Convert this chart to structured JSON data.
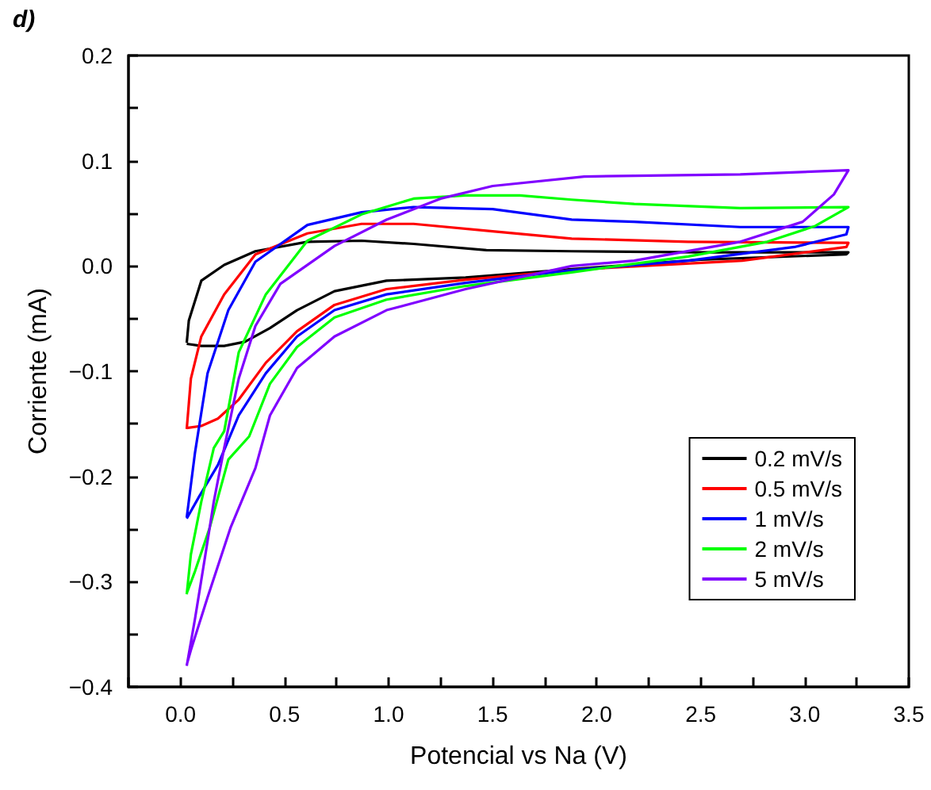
{
  "chart_data": {
    "type": "line",
    "xlabel": "Potencial vs Na (V)",
    "ylabel": "Corriente (mA)",
    "annotations": [
      "d)"
    ],
    "xlim": [
      -0.25,
      3.5
    ],
    "xticks": [
      {
        "value": -0.25,
        "label": null
      },
      {
        "value": 0,
        "label": "0.0"
      },
      {
        "value": 0.25,
        "label": null
      },
      {
        "value": 0.5,
        "label": "0.5"
      },
      {
        "value": 0.75,
        "label": null
      },
      {
        "value": 1,
        "label": "1.0"
      },
      {
        "value": 1.25,
        "label": null
      },
      {
        "value": 1.5,
        "label": "1.5"
      },
      {
        "value": 1.75,
        "label": null
      },
      {
        "value": 2,
        "label": "2.0"
      },
      {
        "value": 2.25,
        "label": null
      },
      {
        "value": 2.5,
        "label": "2.5"
      },
      {
        "value": 2.75,
        "label": null
      },
      {
        "value": 3,
        "label": "3.0"
      },
      {
        "value": 3.25,
        "label": null
      },
      {
        "value": 3.5,
        "label": "3.5"
      }
    ],
    "ylim": [
      -0.4,
      0.2
    ],
    "yticks": [
      {
        "value": -0.4,
        "label": "−0.4"
      },
      {
        "value": -0.35,
        "label": null
      },
      {
        "value": -0.3,
        "label": "−0.3"
      },
      {
        "value": -0.25,
        "label": null
      },
      {
        "value": -0.2,
        "label": "−0.2"
      },
      {
        "value": -0.15,
        "label": null
      },
      {
        "value": -0.1,
        "label": "−0.1"
      },
      {
        "value": -0.05,
        "label": null
      },
      {
        "value": 0,
        "label": "0.0"
      },
      {
        "value": 0.05,
        "label": null
      },
      {
        "value": 0.1,
        "label": "0.1"
      },
      {
        "value": 0.15,
        "label": null
      },
      {
        "value": 0.2,
        "label": "0.2"
      }
    ],
    "grid": false,
    "legend": "bottom right",
    "marker": "none",
    "line_style": "solid",
    "series": [
      {
        "name": "0.2 mV/s",
        "color": "#000000",
        "x": [
          0.03,
          0.04,
          0.1,
          0.21,
          0.36,
          0.61,
          0.87,
          1.12,
          1.47,
          1.88,
          2.5,
          3.21,
          3.2,
          2.5,
          1.88,
          1.37,
          0.99,
          0.74,
          0.56,
          0.43,
          0.31,
          0.21,
          0.1,
          0.03
        ],
        "values": [
          -0.073,
          -0.052,
          -0.014,
          0.001,
          0.014,
          0.023,
          0.024,
          0.021,
          0.015,
          0.014,
          0.013,
          0.013,
          0.011,
          0.006,
          -0.003,
          -0.011,
          -0.014,
          -0.024,
          -0.042,
          -0.059,
          -0.072,
          -0.076,
          -0.076,
          -0.074
        ]
      },
      {
        "name": "0.5 mV/s",
        "color": "#ff0000",
        "x": [
          0.03,
          0.05,
          0.1,
          0.21,
          0.36,
          0.61,
          0.87,
          1.12,
          1.5,
          1.88,
          2.44,
          3.21,
          3.2,
          2.7,
          1.94,
          1.37,
          0.99,
          0.74,
          0.56,
          0.41,
          0.28,
          0.18,
          0.1,
          0.03
        ],
        "values": [
          -0.155,
          -0.107,
          -0.067,
          -0.027,
          0.011,
          0.031,
          0.04,
          0.04,
          0.033,
          0.026,
          0.023,
          0.022,
          0.018,
          0.005,
          -0.003,
          -0.013,
          -0.022,
          -0.037,
          -0.062,
          -0.092,
          -0.127,
          -0.145,
          -0.152,
          -0.154
        ]
      },
      {
        "name": "1 mV/s",
        "color": "#0000ff",
        "x": [
          0.03,
          0.07,
          0.13,
          0.23,
          0.36,
          0.61,
          0.87,
          1.12,
          1.5,
          1.88,
          2.18,
          2.69,
          3.21,
          3.2,
          2.95,
          2.44,
          1.88,
          1.37,
          0.99,
          0.74,
          0.56,
          0.41,
          0.28,
          0.18,
          0.09,
          0.03
        ],
        "values": [
          -0.239,
          -0.177,
          -0.102,
          -0.042,
          0.004,
          0.039,
          0.051,
          0.056,
          0.054,
          0.044,
          0.042,
          0.037,
          0.037,
          0.03,
          0.018,
          0.005,
          -0.004,
          -0.016,
          -0.027,
          -0.042,
          -0.067,
          -0.102,
          -0.142,
          -0.189,
          -0.219,
          -0.24
        ]
      },
      {
        "name": "2 mV/s",
        "color": "#00ff00",
        "x": [
          0.03,
          0.05,
          0.1,
          0.16,
          0.21,
          0.28,
          0.41,
          0.61,
          0.87,
          1.12,
          1.37,
          1.63,
          1.88,
          2.18,
          2.69,
          3.21,
          3.05,
          2.82,
          2.44,
          1.88,
          1.37,
          0.99,
          0.74,
          0.56,
          0.43,
          0.33,
          0.23,
          0.14,
          0.07,
          0.03
        ],
        "values": [
          -0.312,
          -0.274,
          -0.224,
          -0.173,
          -0.157,
          -0.082,
          -0.027,
          0.024,
          0.049,
          0.064,
          0.067,
          0.067,
          0.063,
          0.059,
          0.055,
          0.056,
          0.038,
          0.023,
          0.009,
          -0.006,
          -0.019,
          -0.032,
          -0.049,
          -0.077,
          -0.112,
          -0.162,
          -0.184,
          -0.249,
          -0.29,
          -0.311
        ]
      },
      {
        "name": "5 mV/s",
        "color": "#8000ff",
        "x": [
          0.03,
          0.07,
          0.12,
          0.16,
          0.21,
          0.28,
          0.36,
          0.48,
          0.74,
          0.99,
          1.25,
          1.5,
          1.94,
          2.69,
          3.21,
          3.14,
          2.99,
          2.69,
          2.18,
          1.88,
          1.37,
          0.99,
          0.74,
          0.56,
          0.43,
          0.36,
          0.24,
          0.13,
          0.05,
          0.03
        ],
        "values": [
          -0.38,
          -0.335,
          -0.274,
          -0.224,
          -0.173,
          -0.107,
          -0.057,
          -0.017,
          0.019,
          0.044,
          0.064,
          0.076,
          0.085,
          0.087,
          0.091,
          0.068,
          0.042,
          0.023,
          0.005,
          0.0,
          -0.022,
          -0.042,
          -0.067,
          -0.097,
          -0.142,
          -0.192,
          -0.249,
          -0.315,
          -0.365,
          -0.379
        ]
      }
    ]
  }
}
